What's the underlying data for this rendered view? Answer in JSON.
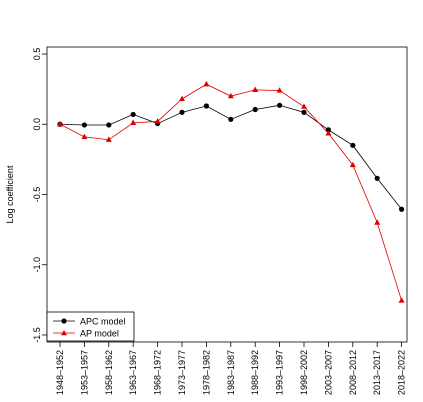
{
  "chart_data": {
    "type": "line",
    "title": "",
    "xlabel": "",
    "ylabel": "Log coefficient",
    "ylim": [
      -1.55,
      0.55
    ],
    "yticks": [
      0.5,
      0.0,
      -0.5,
      -1.0,
      -1.5
    ],
    "ytick_labels": [
      "0.5",
      "0.0",
      "-0.5",
      "-1.0",
      "-1.5"
    ],
    "grid": false,
    "legend_position": "bottom-left",
    "categories": [
      "1948–1952",
      "1953–1957",
      "1958–1962",
      "1963–1967",
      "1968–1972",
      "1973–1977",
      "1978–1982",
      "1983–1987",
      "1988–1992",
      "1993–1997",
      "1998–2002",
      "2003–2007",
      "2008–2012",
      "2013–2017",
      "2018–2022"
    ],
    "series": [
      {
        "name": "APC model",
        "color": "#000000",
        "marker": "circle",
        "values": [
          0.0,
          -0.005,
          -0.005,
          0.07,
          0.005,
          0.085,
          0.13,
          0.035,
          0.105,
          0.135,
          0.085,
          -0.04,
          -0.15,
          -0.385,
          -0.605
        ]
      },
      {
        "name": "AP model",
        "color": "#dd0000",
        "marker": "triangle",
        "values": [
          0.0,
          -0.09,
          -0.11,
          0.01,
          0.02,
          0.18,
          0.285,
          0.2,
          0.245,
          0.24,
          0.125,
          -0.065,
          -0.29,
          -0.7,
          -1.255
        ]
      }
    ]
  }
}
